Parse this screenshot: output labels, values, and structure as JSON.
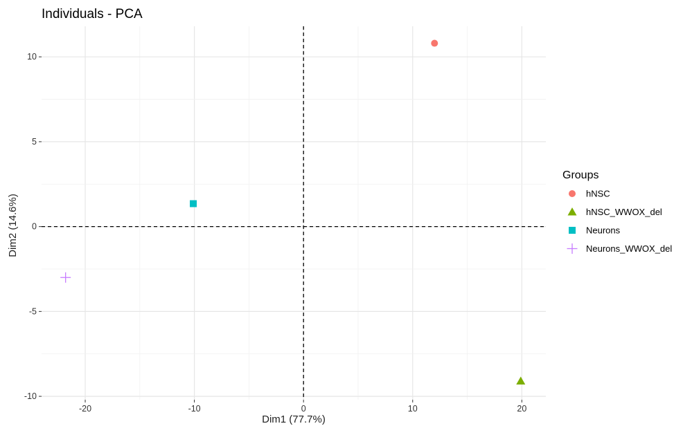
{
  "chart_data": {
    "type": "scatter",
    "title": "Individuals - PCA",
    "xlabel": "Dim1 (77.7%)",
    "ylabel": "Dim2 (14.6%)",
    "xlim": [
      -24,
      22.2
    ],
    "ylim": [
      -10.2,
      11.8
    ],
    "xticks": [
      -20,
      -10,
      0,
      10,
      20
    ],
    "xtick_labels": [
      "-20",
      "-10",
      "0",
      "10",
      "20"
    ],
    "yticks": [
      -10,
      -5,
      0,
      5,
      10
    ],
    "ytick_labels": [
      "-10",
      "-5",
      "0",
      "5",
      "10"
    ],
    "grid": true,
    "reference_lines": {
      "x": 0,
      "y": 0,
      "style": "dashed"
    },
    "legend": {
      "title": "Groups",
      "placement": "right"
    },
    "series": [
      {
        "name": "hNSC",
        "color": "#F8766D",
        "shape": "circle",
        "points": [
          {
            "x": 12.0,
            "y": 10.8
          }
        ]
      },
      {
        "name": "hNSC_WWOX_del",
        "color": "#7CAE00",
        "shape": "triangle",
        "points": [
          {
            "x": 19.9,
            "y": -9.1
          }
        ]
      },
      {
        "name": "Neurons",
        "color": "#00BFC4",
        "shape": "square",
        "points": [
          {
            "x": -10.1,
            "y": 1.35
          }
        ]
      },
      {
        "name": "Neurons_WWOX_del",
        "color": "#C77CFF",
        "shape": "plus",
        "points": [
          {
            "x": -21.8,
            "y": -3.0
          }
        ]
      }
    ]
  }
}
